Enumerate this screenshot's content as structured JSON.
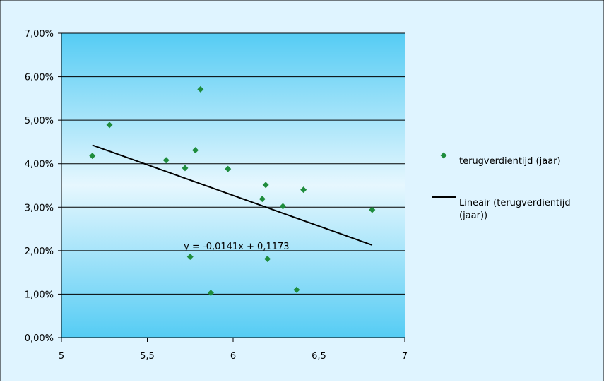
{
  "chart_data": {
    "type": "scatter",
    "title": "",
    "xlabel": "",
    "ylabel": "",
    "xlim": [
      5,
      7
    ],
    "ylim": [
      0,
      0.07
    ],
    "x_ticks": [
      5,
      5.5,
      6,
      6.5,
      7
    ],
    "x_tick_labels": [
      "5",
      "5,5",
      "6",
      "6,5",
      "7"
    ],
    "y_ticks": [
      0,
      0.01,
      0.02,
      0.03,
      0.04,
      0.05,
      0.06,
      0.07
    ],
    "y_tick_labels": [
      "0,00%",
      "1,00%",
      "2,00%",
      "3,00%",
      "4,00%",
      "5,00%",
      "6,00%",
      "7,00%"
    ],
    "grid": "horizontal",
    "legend_position": "right",
    "series": [
      {
        "name": "terugverdientijd (jaar)",
        "type": "scatter",
        "color": "#1e8c3c",
        "marker": "diamond",
        "points": [
          {
            "x": 5.18,
            "y": 0.0418
          },
          {
            "x": 5.28,
            "y": 0.0489
          },
          {
            "x": 5.61,
            "y": 0.0408
          },
          {
            "x": 5.72,
            "y": 0.039
          },
          {
            "x": 5.75,
            "y": 0.0186
          },
          {
            "x": 5.78,
            "y": 0.0431
          },
          {
            "x": 5.81,
            "y": 0.0571
          },
          {
            "x": 5.87,
            "y": 0.0103
          },
          {
            "x": 5.97,
            "y": 0.0388
          },
          {
            "x": 6.17,
            "y": 0.0319
          },
          {
            "x": 6.19,
            "y": 0.0351
          },
          {
            "x": 6.2,
            "y": 0.0181
          },
          {
            "x": 6.29,
            "y": 0.0302
          },
          {
            "x": 6.37,
            "y": 0.011
          },
          {
            "x": 6.41,
            "y": 0.034
          },
          {
            "x": 6.81,
            "y": 0.0294
          }
        ]
      }
    ],
    "trendline": {
      "name": "Lineair (terugverdientijd (jaar))",
      "name_lines": [
        "Lineair (terugverdientijd",
        "(jaar))"
      ],
      "type": "linear",
      "color": "#000000",
      "slope": -0.0141,
      "intercept": 0.1173,
      "x_range": [
        5.18,
        6.81
      ],
      "equation_text": "y = -0,0141x + 0,1173"
    },
    "colors": {
      "plot_gradient_top": "#55ccf4",
      "plot_gradient_middle": "#e6f7fe",
      "plot_gradient_bottom": "#55ccf4",
      "chart_background": "#dff4ff",
      "gridline": "#000000"
    }
  }
}
